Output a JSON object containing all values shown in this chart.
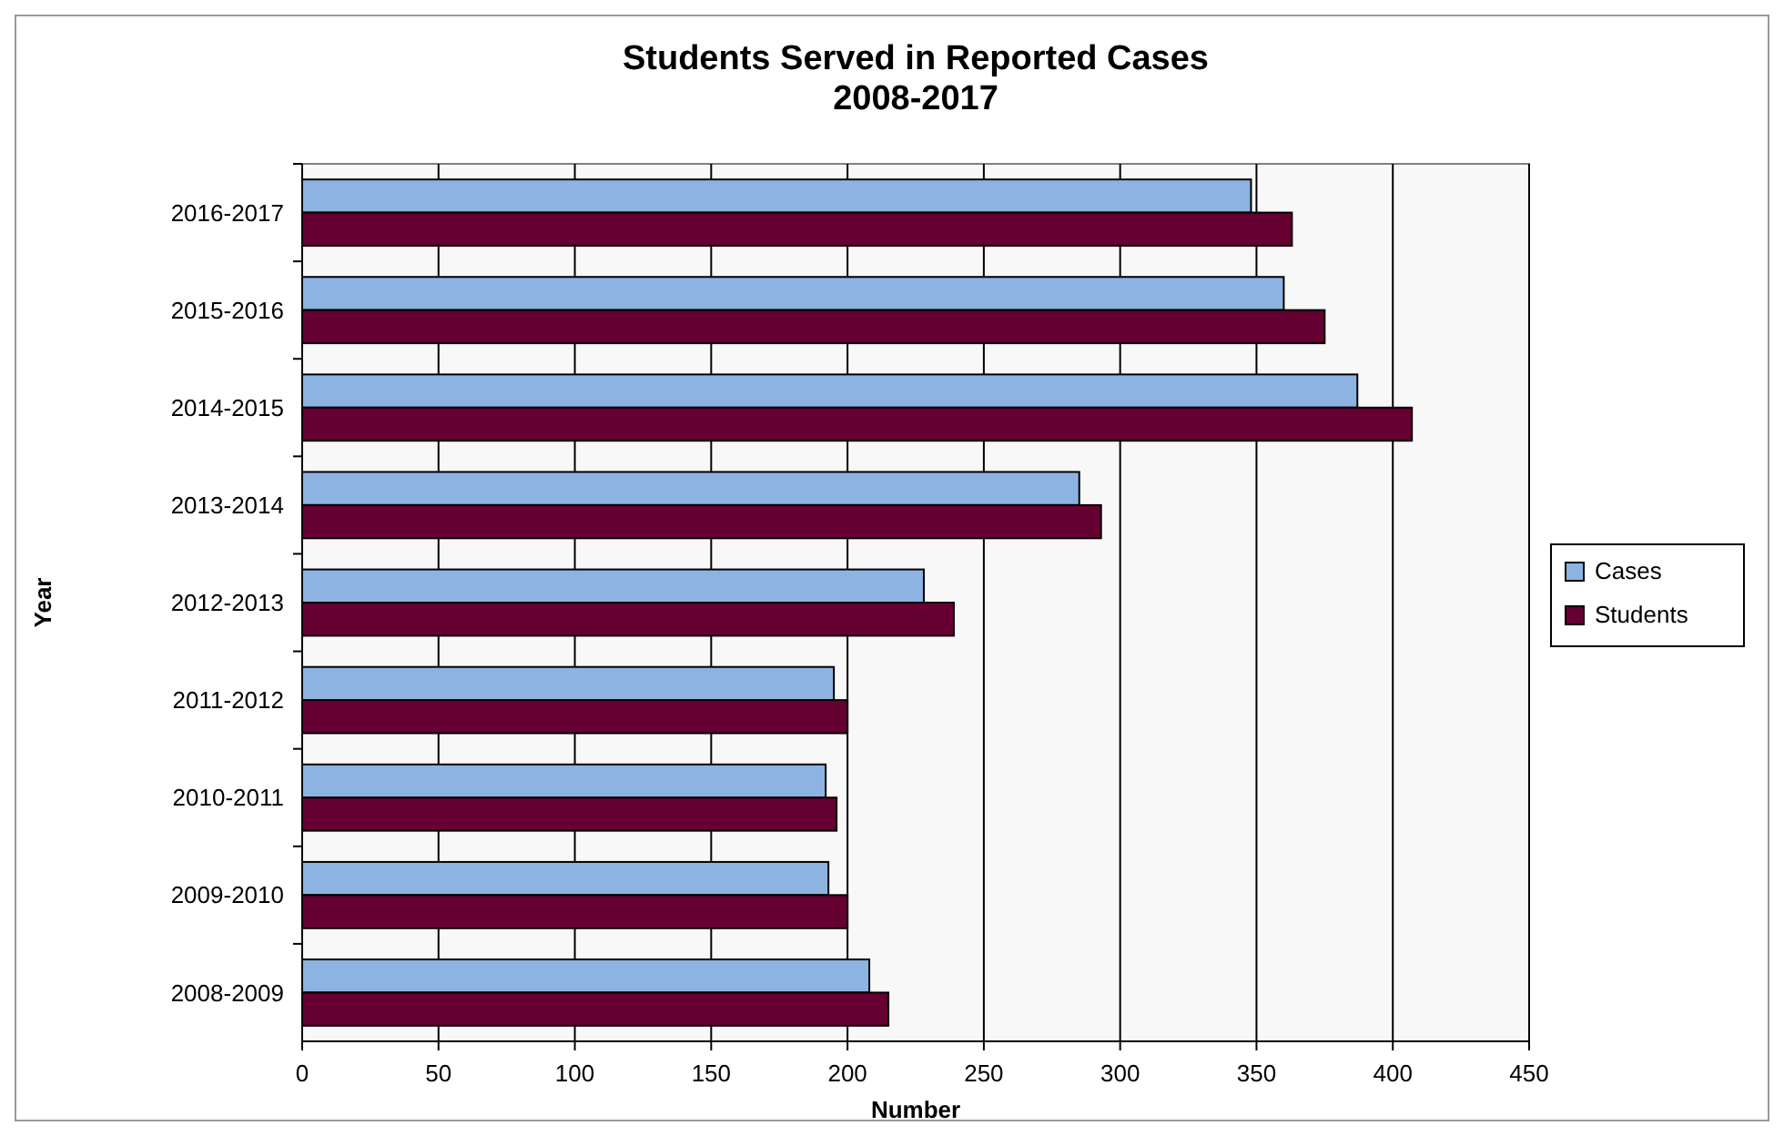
{
  "chart_data": {
    "type": "bar",
    "orientation": "horizontal",
    "title": "Students Served in Reported Cases\n2008-2017",
    "xlabel": "Number",
    "ylabel": "Year",
    "categories": [
      "2016-2017",
      "2015-2016",
      "2014-2015",
      "2013-2014",
      "2012-2013",
      "2011-2012",
      "2010-2011",
      "2009-2010",
      "2008-2009"
    ],
    "series": [
      {
        "name": "Cases",
        "color": "#8db3e2",
        "values": [
          348,
          360,
          387,
          285,
          228,
          195,
          192,
          193,
          208
        ]
      },
      {
        "name": "Students",
        "color": "#660033",
        "values": [
          363,
          375,
          407,
          293,
          239,
          200,
          196,
          200,
          215
        ]
      }
    ],
    "xlim": [
      0,
      450
    ],
    "xticks": [
      0,
      50,
      100,
      150,
      200,
      250,
      300,
      350,
      400,
      450
    ],
    "grid": "x",
    "legend": "right"
  }
}
